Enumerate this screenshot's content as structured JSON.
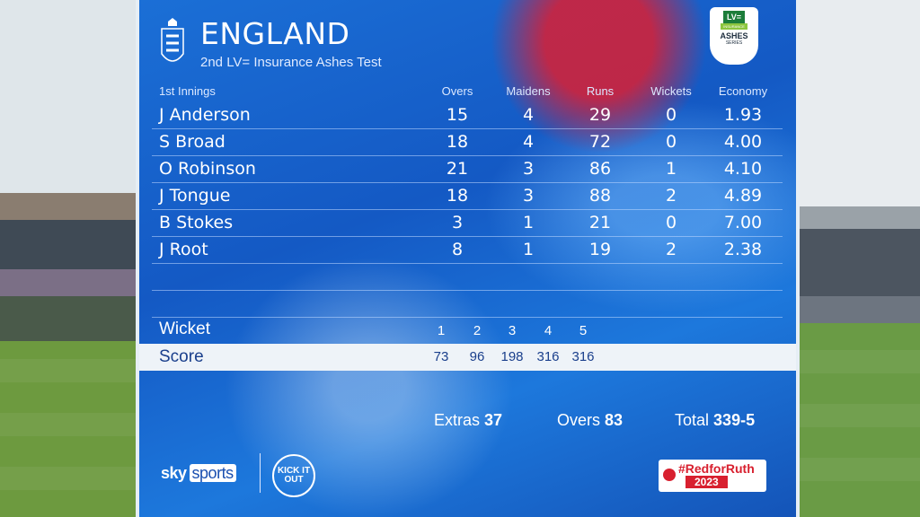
{
  "header": {
    "team": "ENGLAND",
    "subtitle": "2nd LV= Insurance Ashes Test",
    "sponsor": {
      "lv": "LV=",
      "insurance": "INSURANCE",
      "ashes": "ASHES",
      "series": "SERIES"
    }
  },
  "table": {
    "innings_label": "1st Innings",
    "columns": [
      "Overs",
      "Maidens",
      "Runs",
      "Wickets",
      "Economy"
    ],
    "rows": [
      {
        "name": "J Anderson",
        "overs": "15",
        "maidens": "4",
        "runs": "29",
        "wickets": "0",
        "economy": "1.93"
      },
      {
        "name": "S Broad",
        "overs": "18",
        "maidens": "4",
        "runs": "72",
        "wickets": "0",
        "economy": "4.00"
      },
      {
        "name": "O Robinson",
        "overs": "21",
        "maidens": "3",
        "runs": "86",
        "wickets": "1",
        "economy": "4.10"
      },
      {
        "name": "J Tongue",
        "overs": "18",
        "maidens": "3",
        "runs": "88",
        "wickets": "2",
        "economy": "4.89"
      },
      {
        "name": "B Stokes",
        "overs": "3",
        "maidens": "1",
        "runs": "21",
        "wickets": "0",
        "economy": "7.00"
      },
      {
        "name": "J Root",
        "overs": "8",
        "maidens": "1",
        "runs": "19",
        "wickets": "2",
        "economy": "2.38"
      }
    ]
  },
  "fall_of_wickets": {
    "wicket_label": "Wicket",
    "score_label": "Score",
    "wickets": [
      "1",
      "2",
      "3",
      "4",
      "5"
    ],
    "scores": [
      "73",
      "96",
      "198",
      "316",
      "316"
    ]
  },
  "totals": {
    "extras_label": "Extras",
    "extras": "37",
    "overs_label": "Overs",
    "overs": "83",
    "total_label": "Total",
    "total": "339-5"
  },
  "footer": {
    "broadcaster": "sky",
    "broadcaster_sub": "sports",
    "campaign": "KICK IT OUT",
    "hashtag": "#RedforRuth",
    "year": "2023"
  },
  "colors": {
    "panel_blue": "#1459c4",
    "score_bar": "#eef3f8",
    "accent_red": "#d8202f"
  }
}
